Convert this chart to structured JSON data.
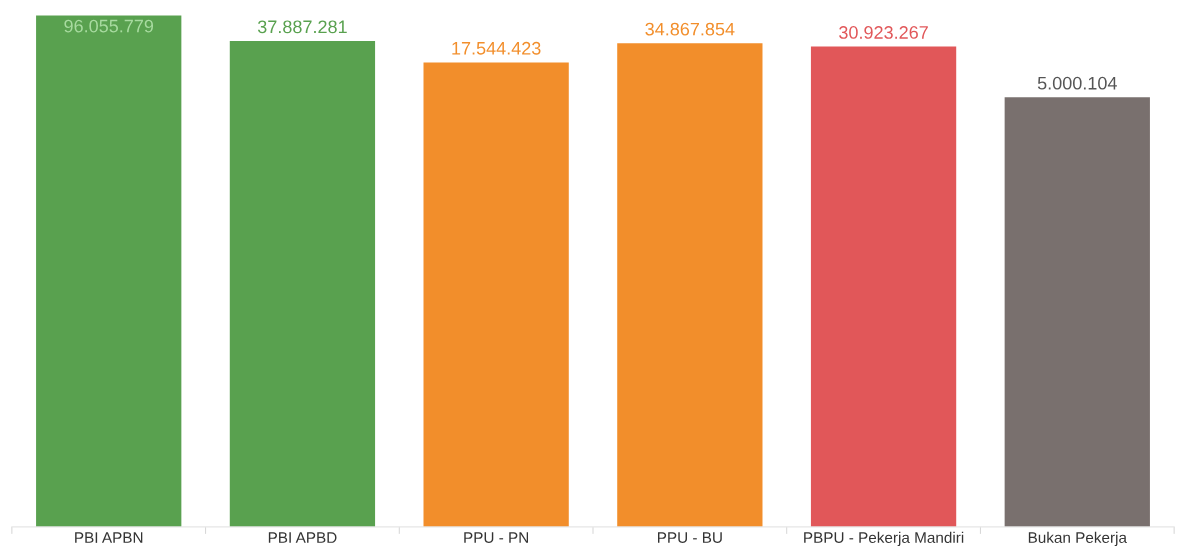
{
  "chart_data": {
    "type": "bar",
    "categories": [
      "PBI APBN",
      "PBI APBD",
      "PPU - PN",
      "PPU - BU",
      "PBPU - Pekerja Mandiri",
      "Bukan Pekerja"
    ],
    "values": [
      96055779,
      37887281,
      17544423,
      34867854,
      30923267,
      5000104
    ],
    "colors": [
      "#59a14f",
      "#59a14f",
      "#f28e2b",
      "#f28e2b",
      "#e15759",
      "#79706e"
    ],
    "value_labels": [
      "96.055.779",
      "37.887.281",
      "17.544.423",
      "34.867.854",
      "30.923.267",
      "5.000.104"
    ],
    "log": true,
    "ylim": [
      1,
      96055779
    ],
    "tick_labels": "x",
    "grid": false,
    "legend": false
  }
}
